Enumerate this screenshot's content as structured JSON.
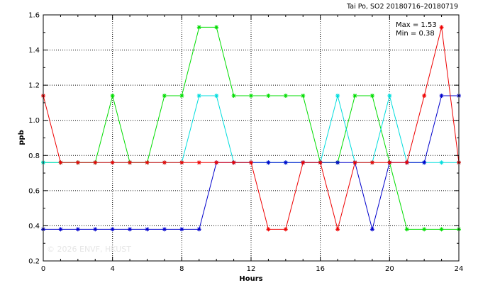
{
  "chart_data": {
    "type": "line",
    "title": "Tai Po, SO2 20180716–20180719",
    "xlabel": "Hours",
    "ylabel": "ppb",
    "xlim": [
      0,
      24
    ],
    "ylim": [
      0.2,
      1.6
    ],
    "xticks": [
      0,
      4,
      8,
      12,
      16,
      20,
      24
    ],
    "yticks": [
      0.2,
      0.4,
      0.6,
      0.8,
      1.0,
      1.2,
      1.4,
      1.6
    ],
    "xtick_labels": [
      "0",
      "4",
      "8",
      "12",
      "16",
      "20",
      "24"
    ],
    "ytick_labels": [
      "0.2",
      "0.4",
      "0.6",
      "0.8",
      "1.0",
      "1.2",
      "1.4",
      "1.6"
    ],
    "grid": true,
    "max_label": "Max = 1.53",
    "min_label": "Min = 0.38",
    "watermark": "© 2026  ENVF, HKUST",
    "x": [
      0,
      1,
      2,
      3,
      4,
      5,
      6,
      7,
      8,
      9,
      10,
      11,
      12,
      13,
      14,
      15,
      16,
      17,
      18,
      19,
      20,
      21,
      22,
      23,
      24
    ],
    "series": [
      {
        "color": "#00dd00",
        "values": [
          0.76,
          0.76,
          0.76,
          0.76,
          1.14,
          0.76,
          0.76,
          1.14,
          1.14,
          1.53,
          1.53,
          1.14,
          1.14,
          1.14,
          1.14,
          1.14,
          0.76,
          0.76,
          1.14,
          1.14,
          0.76,
          0.38,
          0.38,
          0.38,
          0.38
        ]
      },
      {
        "color": "#00dddd",
        "values": [
          0.76,
          0.76,
          0.76,
          0.76,
          0.76,
          0.76,
          0.76,
          0.76,
          0.76,
          1.14,
          1.14,
          0.76,
          0.76,
          0.76,
          0.76,
          0.76,
          0.76,
          1.14,
          0.76,
          0.76,
          1.14,
          0.76,
          0.76,
          0.76,
          0.76
        ]
      },
      {
        "color": "#0000cc",
        "values": [
          0.38,
          0.38,
          0.38,
          0.38,
          0.38,
          0.38,
          0.38,
          0.38,
          0.38,
          0.38,
          0.76,
          0.76,
          0.76,
          0.76,
          0.76,
          0.76,
          0.76,
          0.76,
          0.76,
          0.38,
          0.76,
          0.76,
          0.76,
          1.14,
          1.14
        ]
      },
      {
        "color": "#ee0000",
        "values": [
          1.14,
          0.76,
          0.76,
          0.76,
          0.76,
          0.76,
          0.76,
          0.76,
          0.76,
          0.76,
          0.76,
          0.76,
          0.76,
          0.38,
          0.38,
          0.76,
          0.76,
          0.38,
          0.76,
          0.76,
          0.76,
          0.76,
          1.14,
          1.53,
          0.76
        ]
      }
    ]
  }
}
